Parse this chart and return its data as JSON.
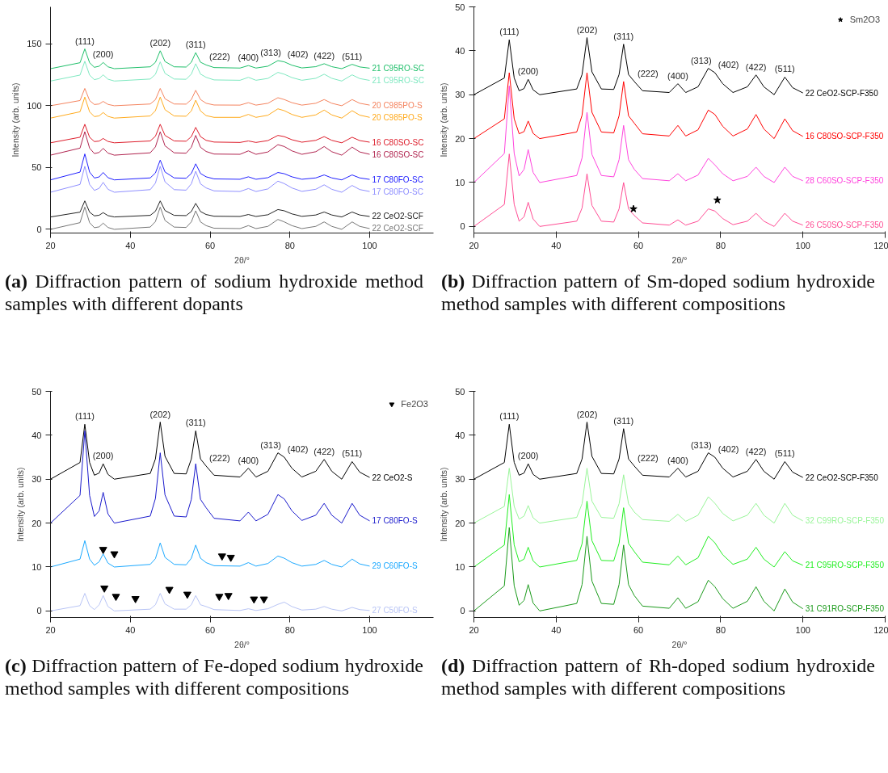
{
  "chart_data": [
    {
      "type": "line",
      "xlabel": "2θ/°",
      "ylabel": "Intensity (arb. units)",
      "xlim": [
        20,
        116
      ],
      "ylim": [
        -3,
        180
      ],
      "xticks": [
        20,
        40,
        60,
        80,
        100
      ],
      "yticks": [
        0,
        50,
        100,
        150
      ],
      "x": [
        20,
        27.4,
        28.6,
        29.8,
        31,
        32.2,
        33.2,
        34.4,
        36,
        45,
        46.3,
        47.5,
        48.7,
        51,
        54,
        55.3,
        56.4,
        57.6,
        59,
        61,
        67.5,
        69.6,
        71.5,
        74.5,
        77,
        78.6,
        80.5,
        83,
        86.5,
        88.6,
        90.5,
        93,
        95.6,
        97.5,
        100
      ],
      "series": [
        {
          "name": "21 C95RO-SC",
          "color": "#1fbf6a",
          "values": [
            130,
            134.8,
            146,
            134.8,
            131.1,
            132,
            135,
            131.5,
            130,
            131.5,
            135.1,
            144.5,
            135.8,
            131.5,
            131.3,
            135.2,
            143,
            135.2,
            133,
            130.9,
            130.5,
            132.5,
            130.5,
            132,
            136.5,
            135.5,
            132.8,
            130.6,
            131.6,
            134,
            131.6,
            130,
            133.5,
            131.4,
            130.4
          ]
        },
        {
          "name": "21 C95RO-SC",
          "color": "#7fe8c0",
          "values": [
            120,
            124.8,
            136,
            124.8,
            121.1,
            122,
            125,
            121.5,
            120,
            121.6,
            125.4,
            135.5,
            126.2,
            121.6,
            121.4,
            125.6,
            134,
            125.6,
            123,
            120.9,
            120.6,
            123,
            120.6,
            122.1,
            127,
            125.5,
            122.8,
            120.6,
            122.2,
            125.5,
            122.2,
            120,
            125,
            122,
            120.5
          ]
        },
        {
          "name": "20 C985PO-S",
          "color": "#f4845f",
          "values": [
            100,
            104.2,
            114,
            104.2,
            101,
            101.4,
            103.5,
            101.1,
            100,
            101.4,
            104.9,
            114,
            105.6,
            101.4,
            101.3,
            105,
            112.5,
            105,
            102,
            100.6,
            100.5,
            102.5,
            100.5,
            102,
            106.5,
            105,
            102.5,
            100.5,
            102,
            105,
            102,
            100,
            105,
            102,
            100.5
          ]
        },
        {
          "name": "20 C985PO-S",
          "color": "#ffaa1d",
          "values": [
            90,
            95.1,
            107,
            95.1,
            91.2,
            91.8,
            94.5,
            91.4,
            90,
            91.7,
            96,
            107,
            96.8,
            91.7,
            91.5,
            95.8,
            104.5,
            95.8,
            92,
            90.6,
            90.6,
            93,
            90.6,
            92.3,
            97.5,
            96,
            93,
            90.6,
            92.6,
            96.5,
            92.6,
            90,
            96,
            92.4,
            90.6
          ]
        },
        {
          "name": "16 C80SO-SC",
          "color": "#dd1c2a",
          "values": [
            70,
            74.5,
            85,
            74.5,
            71,
            71.4,
            73.5,
            71.1,
            70,
            71.5,
            75.3,
            85,
            76,
            71.5,
            71.3,
            75,
            82.5,
            75,
            72,
            70.6,
            70.3,
            71.5,
            70.3,
            71.8,
            76,
            75,
            72.5,
            70.5,
            72,
            75,
            72,
            70,
            74.5,
            71.8,
            70.5
          ]
        },
        {
          "name": "16 C80SO-SC",
          "color": "#b0244f",
          "values": [
            60,
            65.7,
            79,
            65.7,
            61.3,
            62.2,
            65.5,
            61.7,
            60,
            61.9,
            66.7,
            79,
            67.6,
            61.9,
            61.6,
            66.4,
            76,
            66.4,
            63,
            60.9,
            60.7,
            63.5,
            60.7,
            62.6,
            68.5,
            67,
            63.5,
            60.7,
            62.8,
            67,
            62.8,
            60,
            66.5,
            62.6,
            60.7
          ]
        },
        {
          "name": "17 C80FO-SC",
          "color": "#2222ff",
          "values": [
            40,
            46.3,
            61,
            46.3,
            41.5,
            42.4,
            46,
            41.8,
            40,
            41.6,
            45.6,
            56,
            46.4,
            41.6,
            41.3,
            45.2,
            53,
            45.2,
            42.5,
            40.8,
            40.5,
            42.5,
            40.5,
            41.8,
            46,
            45,
            42.5,
            40.5,
            41.6,
            44,
            41.6,
            40,
            44,
            41.6,
            40.4
          ]
        },
        {
          "name": "17 C80FO-SC",
          "color": "#8f8fff",
          "values": [
            30,
            36.3,
            51,
            36.3,
            31.5,
            33.2,
            38,
            32.4,
            30,
            32.1,
            37.4,
            51,
            38.4,
            32.1,
            31.7,
            36.8,
            47,
            36.8,
            33.5,
            31.1,
            30.6,
            33,
            30.6,
            32.7,
            39,
            37,
            33.5,
            30.7,
            32.4,
            36,
            32.4,
            30,
            35.5,
            32.2,
            30.6
          ]
        },
        {
          "name": "22 CeO2-SCF",
          "color": "#222222",
          "values": [
            10,
            13.9,
            23,
            13.9,
            10.9,
            11.4,
            13.5,
            11.1,
            10,
            11.3,
            14.6,
            23,
            15.2,
            11.3,
            11.1,
            14.4,
            21,
            14.4,
            12,
            10.6,
            10.4,
            12,
            10.4,
            11.8,
            16,
            15,
            12.5,
            10.5,
            11.6,
            14,
            11.6,
            10,
            14,
            11.6,
            10.4
          ]
        },
        {
          "name": "22 CeO2-SCF",
          "color": "#777777",
          "values": [
            0,
            5.4,
            18,
            5.4,
            1.3,
            2,
            5,
            1.5,
            0,
            1.8,
            6.3,
            18,
            7.2,
            1.8,
            1.5,
            6,
            15,
            6,
            3,
            0.9,
            0.6,
            3,
            0.6,
            2.4,
            8,
            6,
            3,
            0.6,
            2.4,
            6,
            2.4,
            0,
            6,
            2.4,
            0.6
          ]
        }
      ],
      "annotations": [
        {
          "text": "(111)",
          "x": 28.6,
          "y": 146
        },
        {
          "text": "(200)",
          "x": 33.2,
          "y": 135
        },
        {
          "text": "(202)",
          "x": 47.5,
          "y": 144.5
        },
        {
          "text": "(311)",
          "x": 56.4,
          "y": 143
        },
        {
          "text": "(222)",
          "x": 59,
          "y": 133
        },
        {
          "text": "(400)",
          "x": 69.6,
          "y": 132.5
        },
        {
          "text": "(313)",
          "x": 77,
          "y": 136.5
        },
        {
          "text": "(402)",
          "x": 78.6,
          "y": 135.5
        },
        {
          "text": "(422)",
          "x": 88.6,
          "y": 134
        },
        {
          "text": "(511)",
          "x": 95.6,
          "y": 133.5
        },
        "(a) Diffraction pattern of sodium hydroxide method samples with different dopants"
      ]
    },
    {
      "type": "line",
      "xlabel": "2θ/°",
      "ylabel": "Intensity (arb. units)",
      "xlim": [
        20,
        120
      ],
      "ylim": [
        -1.5,
        50
      ],
      "xticks": [
        20,
        40,
        60,
        80,
        100,
        120
      ],
      "yticks": [
        0,
        10,
        20,
        30,
        40,
        50
      ],
      "legend": "top right",
      "x": [
        20,
        27.4,
        28.6,
        29.8,
        31,
        32.2,
        33.2,
        34.4,
        36,
        45,
        46.3,
        47.5,
        48.7,
        51,
        54,
        55.3,
        56.4,
        57.6,
        59,
        61,
        67.5,
        69.6,
        71.5,
        74.5,
        77,
        78.6,
        80.5,
        83,
        86.5,
        88.6,
        90.5,
        93,
        95.6,
        97.5,
        100
      ],
      "series": [
        {
          "name": "22 CeO2-SCP-F350",
          "color": "#000000",
          "values": [
            30,
            33.8,
            42.5,
            33.8,
            30.9,
            31.4,
            33.5,
            31.1,
            30,
            31.3,
            34.6,
            43,
            35.2,
            31.3,
            31.2,
            34.6,
            41.5,
            34.6,
            33,
            30.9,
            30.5,
            32.5,
            30.5,
            31.8,
            36,
            35,
            32.5,
            30.5,
            31.8,
            34.5,
            31.8,
            30,
            34,
            31.6,
            30.4
          ]
        },
        {
          "name": "16 C80SO-SCP-F350",
          "color": "#ff0000",
          "values": [
            20,
            24.5,
            35,
            24.5,
            21.1,
            21.6,
            24,
            21.2,
            20,
            21.5,
            25.3,
            35,
            26,
            21.5,
            21.3,
            25.2,
            33,
            25.2,
            23.5,
            21.1,
            20.6,
            23,
            20.6,
            22,
            26.5,
            25.5,
            22.8,
            20.6,
            22.2,
            25.5,
            22.2,
            20,
            24.5,
            21.8,
            20.5
          ]
        },
        {
          "name": "28 C60SO-SCP-F350",
          "color": "#ff44dd",
          "values": [
            10,
            16.6,
            32,
            16.6,
            11.5,
            13,
            17.5,
            12.3,
            10,
            11.6,
            15.6,
            26,
            16.4,
            11.6,
            11.3,
            15.2,
            23,
            15.2,
            13,
            10.9,
            10.4,
            12,
            10.4,
            11.7,
            15.5,
            14,
            12,
            10.4,
            11.4,
            13.5,
            11.4,
            10,
            13.5,
            11.4,
            10.4
          ]
        },
        {
          "name": "26 C50SO-SCP-F350",
          "color": "#ff4d94",
          "values": [
            0,
            5,
            16.5,
            5,
            1.2,
            2.2,
            5.5,
            1.7,
            0,
            1.2,
            4.2,
            12,
            4.8,
            1.2,
            1,
            4,
            10,
            4,
            2.5,
            0.8,
            0.3,
            1.5,
            0.3,
            1.2,
            4,
            3.5,
            1.8,
            0.4,
            1.2,
            3,
            1.2,
            0,
            3,
            1.2,
            0.3
          ]
        },
        {
          "name": "Sm2O3",
          "type": "scatter",
          "marker": "star",
          "color": "#000000",
          "x": [
            58.8,
            79.2
          ],
          "values": [
            4,
            6
          ]
        }
      ],
      "annotations": [
        {
          "text": "(111)",
          "x": 28.6,
          "y": 42.5
        },
        {
          "text": "(200)",
          "x": 33.2,
          "y": 33.5
        },
        {
          "text": "(202)",
          "x": 47.5,
          "y": 43
        },
        {
          "text": "(311)",
          "x": 56.4,
          "y": 41.5
        },
        {
          "text": "(222)",
          "x": 59,
          "y": 33
        },
        {
          "text": "(400)",
          "x": 69.6,
          "y": 32.5
        },
        {
          "text": "(313)",
          "x": 77,
          "y": 36
        },
        {
          "text": "(402)",
          "x": 78.6,
          "y": 35
        },
        {
          "text": "(422)",
          "x": 88.6,
          "y": 34.5
        },
        {
          "text": "(511)",
          "x": 95.6,
          "y": 34
        },
        "(b) Diffraction pattern of Sm-doped sodium hydroxide method samples with different compositions"
      ]
    },
    {
      "type": "line",
      "xlabel": "2θ/°",
      "ylabel": "Intensity (arb. units)",
      "xlim": [
        20,
        116
      ],
      "ylim": [
        -1.5,
        50
      ],
      "xticks": [
        20,
        40,
        60,
        80,
        100
      ],
      "yticks": [
        0,
        10,
        20,
        30,
        40,
        50
      ],
      "legend": "top right",
      "x": [
        20,
        27.4,
        28.6,
        29.8,
        31,
        32.2,
        33.2,
        34.4,
        36,
        45,
        46.3,
        47.5,
        48.7,
        51,
        54,
        55.3,
        56.4,
        57.6,
        59,
        61,
        67.5,
        69.6,
        71.5,
        74.5,
        77,
        78.6,
        80.5,
        83,
        86.5,
        88.6,
        90.5,
        93,
        95.6,
        97.5,
        100
      ],
      "series": [
        {
          "name": "22 CeO2-S",
          "color": "#000000",
          "values": [
            30,
            33.8,
            42.5,
            33.8,
            30.9,
            31.4,
            33.5,
            31.1,
            30,
            31.3,
            34.6,
            43,
            35.2,
            31.3,
            31.2,
            34.6,
            41,
            34.6,
            33,
            30.9,
            30.5,
            32.5,
            30.5,
            31.8,
            36,
            35,
            32.5,
            30.5,
            31.8,
            34.5,
            31.8,
            30,
            34,
            31.6,
            30.4
          ]
        },
        {
          "name": "17 C80FO-S",
          "color": "#1a1acc",
          "values": [
            20,
            26.3,
            41,
            26.3,
            21.5,
            22.8,
            27,
            22.1,
            20,
            21.6,
            25.6,
            36,
            26.4,
            21.6,
            21.4,
            25.4,
            33.5,
            25.4,
            23.5,
            21.1,
            20.5,
            22.5,
            20.5,
            22,
            26.5,
            25.5,
            22.8,
            20.6,
            21.8,
            24.5,
            21.8,
            20,
            24.5,
            21.8,
            20.5
          ]
        },
        {
          "name": "29 C60FO-S",
          "color": "#1aa8ff",
          "values": [
            10,
            11.8,
            16,
            11.8,
            10.4,
            11.2,
            13,
            10.9,
            10,
            10.6,
            11.9,
            15.5,
            12.2,
            10.6,
            10.5,
            12,
            15,
            12,
            11,
            10.3,
            10.2,
            11,
            10.2,
            10.8,
            12.5,
            12,
            11,
            10.2,
            10.6,
            11.5,
            10.6,
            10,
            11.8,
            10.7,
            10.2
          ]
        },
        {
          "name": "27 C50FO-S",
          "color": "#b8c4f5",
          "values": [
            0,
            1.2,
            4,
            1.2,
            0.3,
            1.4,
            3.5,
            1,
            0,
            0.4,
            1.4,
            4,
            1.6,
            0.4,
            0.4,
            1.4,
            3.5,
            1.4,
            1,
            0.3,
            0.1,
            0.5,
            0.1,
            0.5,
            1.5,
            2,
            1,
            0.2,
            0.4,
            1,
            0.4,
            0,
            0.8,
            0.3,
            0.1
          ]
        },
        {
          "name": "Fe2O3",
          "type": "scatter",
          "marker": "triangle",
          "color": "#000000",
          "x": [
            33.2,
            36,
            63,
            65.2,
            33.5,
            36.4,
            41.3,
            49.8,
            54.3,
            62.3,
            64.6,
            71,
            73.5
          ],
          "values": [
            14,
            13,
            12.5,
            12.2,
            5.2,
            3.3,
            2.8,
            4.9,
            3.8,
            3.3,
            3.5,
            2.7,
            2.7
          ]
        }
      ],
      "annotations": [
        {
          "text": "(111)",
          "x": 28.6,
          "y": 42.5
        },
        {
          "text": "(200)",
          "x": 33.2,
          "y": 33.5
        },
        {
          "text": "(202)",
          "x": 47.5,
          "y": 43
        },
        {
          "text": "(311)",
          "x": 56.4,
          "y": 41
        },
        {
          "text": "(222)",
          "x": 59,
          "y": 33
        },
        {
          "text": "(400)",
          "x": 69.6,
          "y": 32.5
        },
        {
          "text": "(313)",
          "x": 77,
          "y": 36
        },
        {
          "text": "(402)",
          "x": 78.6,
          "y": 35
        },
        {
          "text": "(422)",
          "x": 88.6,
          "y": 34.5
        },
        {
          "text": "(511)",
          "x": 95.6,
          "y": 34
        },
        "(c) Diffraction pattern of Fe-doped sodium hydroxide method samples with different compositions"
      ]
    },
    {
      "type": "line",
      "xlabel": "2θ/°",
      "ylabel": "Intensity (arb. units)",
      "xlim": [
        20,
        120
      ],
      "ylim": [
        -1.5,
        50
      ],
      "xticks": [
        20,
        40,
        60,
        80,
        100,
        120
      ],
      "yticks": [
        0,
        10,
        20,
        30,
        40,
        50
      ],
      "x": [
        20,
        27.4,
        28.6,
        29.8,
        31,
        32.2,
        33.2,
        34.4,
        36,
        45,
        46.3,
        47.5,
        48.7,
        51,
        54,
        55.3,
        56.4,
        57.6,
        59,
        61,
        67.5,
        69.6,
        71.5,
        74.5,
        77,
        78.6,
        80.5,
        83,
        86.5,
        88.6,
        90.5,
        93,
        95.6,
        97.5,
        100
      ],
      "series": [
        {
          "name": "22 CeO2-SCP-F350",
          "color": "#000000",
          "values": [
            30,
            33.8,
            42.5,
            33.8,
            30.9,
            31.4,
            33.5,
            31.1,
            30,
            31.3,
            34.6,
            43,
            35.2,
            31.3,
            31.2,
            34.6,
            41.5,
            34.6,
            33,
            30.9,
            30.5,
            32.5,
            30.5,
            31.8,
            36,
            35,
            32.5,
            30.5,
            31.8,
            34.5,
            31.8,
            30,
            34,
            31.6,
            30.4
          ]
        },
        {
          "name": "32 C99RO-SCP-F350",
          "color": "#99f599",
          "values": [
            20,
            23.8,
            32.5,
            23.8,
            20.9,
            21.6,
            24,
            21.2,
            20,
            21.3,
            24.4,
            32.5,
            25,
            21.3,
            21.1,
            24.4,
            31,
            24.4,
            22.5,
            20.8,
            20.4,
            22,
            20.4,
            21.8,
            26,
            24.5,
            22.2,
            20.5,
            21.8,
            24.5,
            21.8,
            20,
            24.5,
            21.8,
            20.5
          ]
        },
        {
          "name": "21 C95RO-SCP-F350",
          "color": "#22ee22",
          "values": [
            10,
            15,
            26.5,
            15,
            11.2,
            11.8,
            14.5,
            11.4,
            10,
            11.5,
            15.3,
            25,
            16,
            11.5,
            11.4,
            15.4,
            23.5,
            15.4,
            13.5,
            11.1,
            10.5,
            12.5,
            10.5,
            12.1,
            17,
            15.5,
            12.8,
            10.6,
            11.8,
            14.5,
            11.8,
            10,
            13.5,
            11.4,
            10.4
          ]
        },
        {
          "name": "31 C91RO-SCP-F350",
          "color": "#1a9a1a",
          "values": [
            0,
            5.7,
            19,
            5.7,
            1.3,
            2.4,
            6,
            1.8,
            0,
            1.7,
            6,
            17,
            6.8,
            1.7,
            1.5,
            6,
            15,
            6,
            3.5,
            1.1,
            0.6,
            3,
            0.6,
            2.1,
            7,
            5.5,
            2.8,
            0.6,
            2.2,
            5.5,
            2.2,
            0,
            5,
            2,
            0.5
          ]
        }
      ],
      "annotations": [
        {
          "text": "(111)",
          "x": 28.6,
          "y": 42.5
        },
        {
          "text": "(200)",
          "x": 33.2,
          "y": 33.5
        },
        {
          "text": "(202)",
          "x": 47.5,
          "y": 43
        },
        {
          "text": "(311)",
          "x": 56.4,
          "y": 41.5
        },
        {
          "text": "(222)",
          "x": 59,
          "y": 33
        },
        {
          "text": "(400)",
          "x": 69.6,
          "y": 32.5
        },
        {
          "text": "(313)",
          "x": 77,
          "y": 36
        },
        {
          "text": "(402)",
          "x": 78.6,
          "y": 35
        },
        {
          "text": "(422)",
          "x": 88.6,
          "y": 34.5
        },
        {
          "text": "(511)",
          "x": 95.6,
          "y": 34
        },
        "(d) Diffraction pattern of Rh-doped sodium hydroxide method samples with different compositions"
      ]
    }
  ]
}
